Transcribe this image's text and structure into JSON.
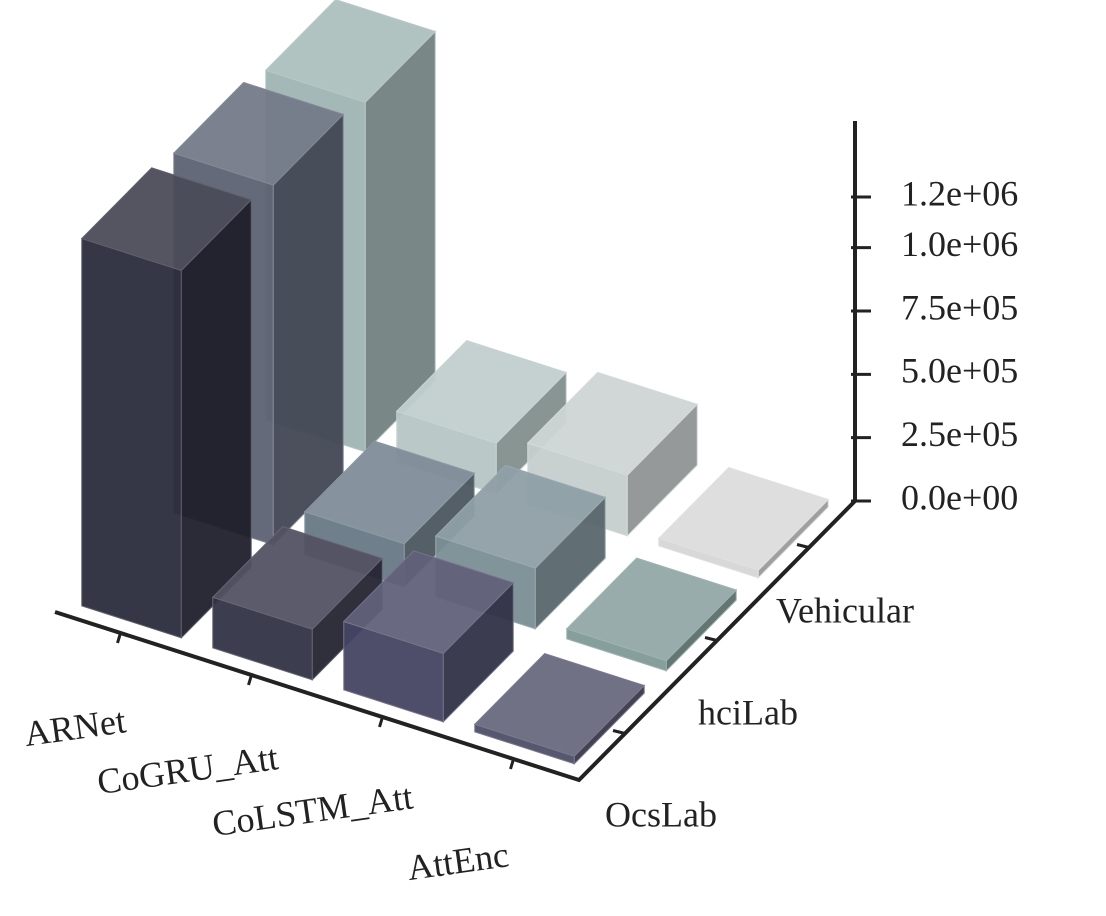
{
  "chart_data": {
    "type": "bar3d",
    "categories": [
      "ARNet",
      "CoGRU_Att",
      "CoLSTM_Att",
      "AttEnc"
    ],
    "series": [
      {
        "name": "OcsLab",
        "colors": [
          "#2b2c3c",
          "#333347",
          "#454563",
          "#4e4e68"
        ],
        "values": [
          1450000,
          200000,
          270000,
          30000
        ]
      },
      {
        "name": "hciLab",
        "colors": [
          "#5c6273",
          "#687886",
          "#7a8e95",
          "#7f9a98"
        ],
        "values": [
          1420000,
          170000,
          240000,
          40000
        ]
      },
      {
        "name": "Vehicular",
        "colors": [
          "#9fb5b3",
          "#b6c6c4",
          "#c6cdcd",
          "#d6d6d6"
        ],
        "values": [
          1380000,
          200000,
          240000,
          30000
        ]
      }
    ],
    "zlim": [
      0,
      1500000
    ],
    "zticks": [
      {
        "value": 0,
        "label": "0.0e+00"
      },
      {
        "value": 250000,
        "label": "2.5e+05"
      },
      {
        "value": 500000,
        "label": "5.0e+05"
      },
      {
        "value": 750000,
        "label": "7.5e+05"
      },
      {
        "value": 1000000,
        "label": "1.0e+06"
      },
      {
        "value": 1200000,
        "label": "1.2e+06"
      }
    ]
  }
}
